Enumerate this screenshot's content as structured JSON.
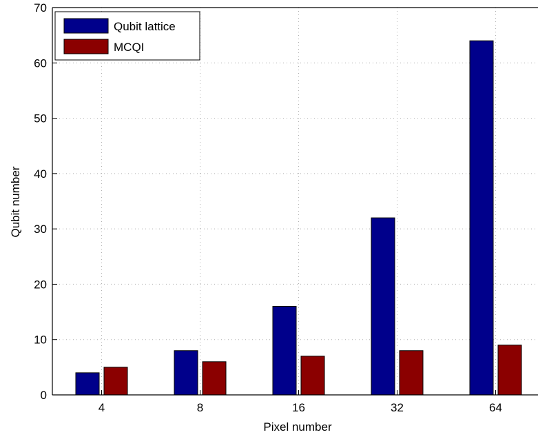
{
  "chart_data": {
    "type": "bar",
    "categories": [
      "4",
      "8",
      "16",
      "32",
      "64"
    ],
    "series": [
      {
        "name": "Qubit lattice",
        "values": [
          4,
          8,
          16,
          32,
          64
        ],
        "color": "#00008b"
      },
      {
        "name": "MCQI",
        "values": [
          5,
          6,
          7,
          8,
          9
        ],
        "color": "#8b0000"
      }
    ],
    "xlabel": "Pixel number",
    "ylabel": "Qubit number",
    "ylim": [
      0,
      70
    ],
    "yticks": [
      "0",
      "10",
      "20",
      "30",
      "40",
      "50",
      "60",
      "70"
    ],
    "grid": true,
    "legend_position": "top-left"
  }
}
